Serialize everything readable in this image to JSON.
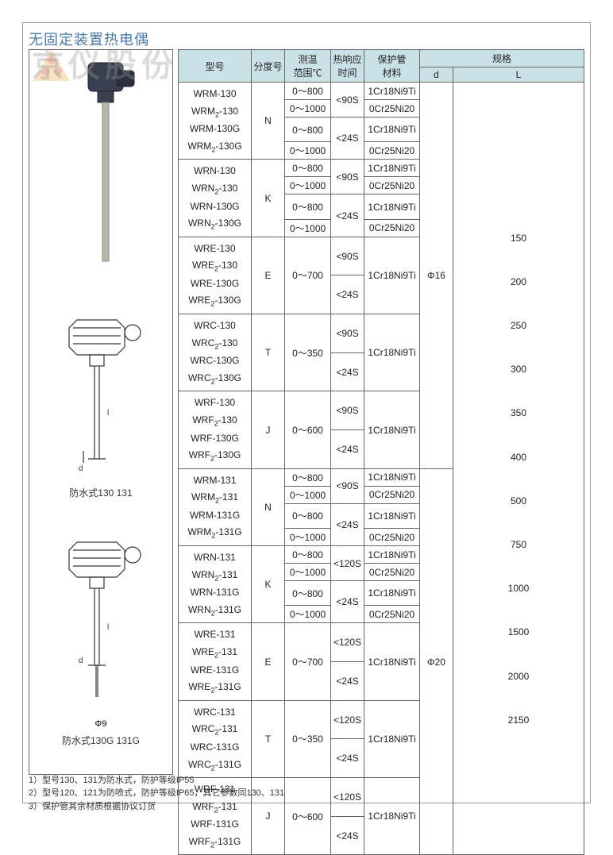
{
  "title": "无固定装置热电偶",
  "watermark": "京仪股份",
  "headers": {
    "model": "型号",
    "gradation": "分度号",
    "range": "测温\n范围℃",
    "response": "热响应\n时间",
    "material": "保护管\n材料",
    "spec": "规格",
    "d": "d",
    "l": "L"
  },
  "fig_labels": {
    "f1": "防水式130 131",
    "f2": "防水式130G 131G",
    "phi9": "Φ9"
  },
  "groups": [
    {
      "models": [
        "WRM-130",
        "WRM₂-130",
        "WRM-130G",
        "WRM₂-130G"
      ],
      "grad": "N",
      "rows": [
        {
          "range": "0～800",
          "resp": "<90S",
          "mat": "1Cr18Ni9Ti"
        },
        {
          "range": "0～1000",
          "resp": "",
          "mat": "0Cr25Ni20"
        },
        {
          "range": "0～800",
          "resp": "<24S",
          "mat": "1Cr18Ni9Ti"
        },
        {
          "range": "0～1000",
          "resp": "",
          "mat": "0Cr25Ni20"
        }
      ]
    },
    {
      "models": [
        "WRN-130",
        "WRN₂-130",
        "WRN-130G",
        "WRN₂-130G"
      ],
      "grad": "K",
      "rows": [
        {
          "range": "0～800",
          "resp": "<90S",
          "mat": "1Cr18Ni9Ti"
        },
        {
          "range": "0～1000",
          "resp": "",
          "mat": "0Cr25Ni20"
        },
        {
          "range": "0～800",
          "resp": "<24S",
          "mat": "1Cr18Ni9Ti"
        },
        {
          "range": "0～1000",
          "resp": "",
          "mat": "0Cr25Ni20"
        }
      ]
    },
    {
      "models": [
        "WRE-130",
        "WRE₂-130",
        "WRE-130G",
        "WRE₂-130G"
      ],
      "grad": "E",
      "rows": [
        {
          "range": "0～700",
          "resp": "<90S",
          "mat": "1Cr18Ni9Ti"
        },
        {
          "range": "",
          "resp": "<24S",
          "mat": ""
        }
      ]
    },
    {
      "models": [
        "WRC-130",
        "WRC₂-130",
        "WRC-130G",
        "WRC₂-130G"
      ],
      "grad": "T",
      "rows": [
        {
          "range": "0～350",
          "resp": "<90S",
          "mat": "1Cr18Ni9Ti"
        },
        {
          "range": "",
          "resp": "<24S",
          "mat": ""
        }
      ]
    },
    {
      "models": [
        "WRF-130",
        "WRF₂-130",
        "WRF-130G",
        "WRF₂-130G"
      ],
      "grad": "J",
      "rows": [
        {
          "range": "0～600",
          "resp": "<90S",
          "mat": "1Cr18Ni9Ti"
        },
        {
          "range": "",
          "resp": "<24S",
          "mat": ""
        }
      ]
    },
    {
      "models": [
        "WRM-131",
        "WRM₂-131",
        "WRM-131G",
        "WRM₂-131G"
      ],
      "grad": "N",
      "rows": [
        {
          "range": "0～800",
          "resp": "<90S",
          "mat": "1Cr18Ni9Ti"
        },
        {
          "range": "0～1000",
          "resp": "",
          "mat": "0Cr25Ni20"
        },
        {
          "range": "0～800",
          "resp": "<24S",
          "mat": "1Cr18Ni9Ti"
        },
        {
          "range": "0～1000",
          "resp": "",
          "mat": "0Cr25Ni20"
        }
      ]
    },
    {
      "models": [
        "WRN-131",
        "WRN₂-131",
        "WRN-131G",
        "WRN₂-131G"
      ],
      "grad": "K",
      "rows": [
        {
          "range": "0～800",
          "resp": "<120S",
          "mat": "1Cr18Ni9Ti"
        },
        {
          "range": "0～1000",
          "resp": "",
          "mat": "0Cr25Ni20"
        },
        {
          "range": "0～800",
          "resp": "<24S",
          "mat": "1Cr18Ni9Ti"
        },
        {
          "range": "0～1000",
          "resp": "",
          "mat": "0Cr25Ni20"
        }
      ]
    },
    {
      "models": [
        "WRE-131",
        "WRE₂-131",
        "WRE-131G",
        "WRE₂-131G"
      ],
      "grad": "E",
      "rows": [
        {
          "range": "0～700",
          "resp": "<120S",
          "mat": "1Cr18Ni9Ti"
        },
        {
          "range": "",
          "resp": "<24S",
          "mat": ""
        }
      ]
    },
    {
      "models": [
        "WRC-131",
        "WRC₂-131",
        "WRC-131G",
        "WRC₂-131G"
      ],
      "grad": "T",
      "rows": [
        {
          "range": "0～350",
          "resp": "<120S",
          "mat": "1Cr18Ni9Ti"
        },
        {
          "range": "",
          "resp": "<24S",
          "mat": ""
        }
      ]
    },
    {
      "models": [
        "WRF-131",
        "WRF₂-131",
        "WRF-131G",
        "WRF₂-131G"
      ],
      "grad": "J",
      "rows": [
        {
          "range": "0～600",
          "resp": "<120S",
          "mat": "1Cr18Ni9Ti"
        },
        {
          "range": "",
          "resp": "<24S",
          "mat": ""
        }
      ]
    }
  ],
  "d_values": [
    "Φ16",
    "Φ20"
  ],
  "l_values": [
    "150",
    "200",
    "250",
    "300",
    "350",
    "400",
    "500",
    "750",
    "1000",
    "1500",
    "2000",
    "2150"
  ],
  "notes": [
    "1）型号130、131为防水式，防护等级IP55",
    "2）型号120、121为防喷式，防护等级IP65，其它参数同130、131",
    "3）保护管其余材质根据协议订货"
  ]
}
